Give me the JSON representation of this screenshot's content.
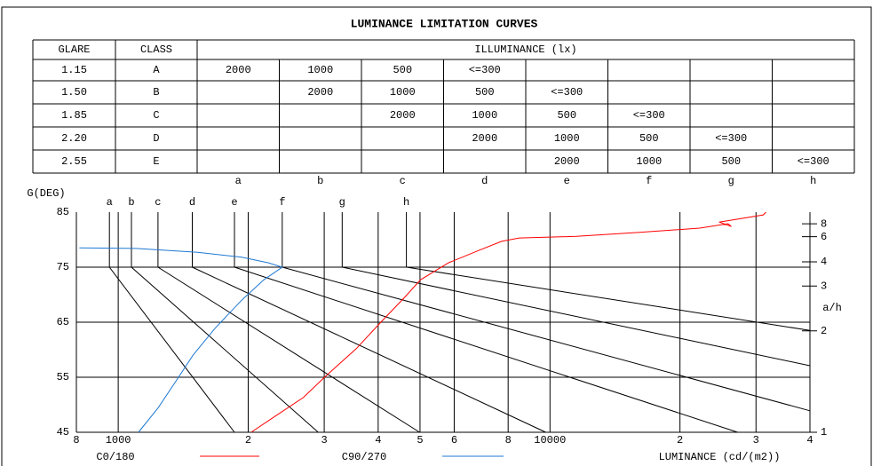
{
  "title": "LUMINANCE LIMITATION CURVES",
  "table": {
    "headers": [
      "GLARE",
      "CLASS",
      "ILLUMINANCE (lx)"
    ],
    "rows": [
      {
        "glare": "1.15",
        "class": "A",
        "cells": [
          "2000",
          "1000",
          "500",
          "<=300",
          null,
          null,
          null,
          null
        ]
      },
      {
        "glare": "1.50",
        "class": "B",
        "cells": [
          null,
          "2000",
          "1000",
          "500",
          "<=300",
          null,
          null,
          null
        ]
      },
      {
        "glare": "1.85",
        "class": "C",
        "cells": [
          null,
          null,
          "2000",
          "1000",
          "500",
          "<=300",
          null,
          null
        ]
      },
      {
        "glare": "2.20",
        "class": "D",
        "cells": [
          null,
          null,
          null,
          "2000",
          "1000",
          "500",
          "<=300",
          null
        ]
      },
      {
        "glare": "2.55",
        "class": "E",
        "cells": [
          null,
          null,
          null,
          null,
          "2000",
          "1000",
          "500",
          "<=300"
        ]
      }
    ],
    "columns": [
      "a",
      "b",
      "c",
      "d",
      "e",
      "f",
      "g",
      "h"
    ]
  },
  "chart_data": {
    "type": "line",
    "y_label": "G(DEG)",
    "x_label": "LUMINANCE (cd/(m2))",
    "y2_label": "a/h",
    "x_log": true,
    "y2_scale": "atan",
    "xlim": [
      800,
      40000
    ],
    "xticks": [
      {
        "value": 800,
        "label": "8"
      },
      {
        "value": 1000,
        "label": "1000"
      },
      {
        "value": 2000,
        "label": "2"
      },
      {
        "value": 3000,
        "label": "3"
      },
      {
        "value": 4000,
        "label": "4"
      },
      {
        "value": 5000,
        "label": "5"
      },
      {
        "value": 6000,
        "label": "6"
      },
      {
        "value": 8000,
        "label": "8"
      },
      {
        "value": 10000,
        "label": "10000"
      },
      {
        "value": 20000,
        "label": "2"
      },
      {
        "value": 30000,
        "label": "3"
      },
      {
        "value": 40000,
        "label": "4"
      }
    ],
    "ylim": [
      45,
      85
    ],
    "yticks": [
      85,
      75,
      65,
      55,
      45
    ],
    "y2lim": [
      1,
      11.43
    ],
    "y2ticks": [
      1,
      2,
      3,
      4,
      6,
      8
    ],
    "series": [
      {
        "name": "a",
        "color": "#000000",
        "x": [
          954,
          954,
          1859
        ],
        "values": [
          85,
          75,
          45
        ]
      },
      {
        "name": "b",
        "color": "#000000",
        "x": [
          1073,
          1073,
          2905
        ],
        "values": [
          85,
          75,
          45
        ]
      },
      {
        "name": "c",
        "color": "#000000",
        "x": [
          1236,
          1236,
          4990
        ],
        "values": [
          85,
          75,
          45
        ]
      },
      {
        "name": "d",
        "color": "#000000",
        "x": [
          1484,
          1484,
          9774
        ],
        "values": [
          85,
          75,
          45
        ]
      },
      {
        "name": "e",
        "color": "#000000",
        "x": [
          1859,
          1859,
          27200
        ],
        "values": [
          85,
          75,
          45
        ]
      },
      {
        "name": "f",
        "color": "#000000",
        "x": [
          2398,
          2398,
          40000
        ],
        "values": [
          85,
          75,
          48.9
        ]
      },
      {
        "name": "g",
        "color": "#000000",
        "x": [
          3301,
          3301,
          40000
        ],
        "values": [
          85,
          75,
          57.1
        ]
      },
      {
        "name": "h",
        "color": "#000000",
        "x": [
          4650,
          4650,
          40000
        ],
        "values": [
          85,
          75,
          63.5
        ]
      },
      {
        "name": "C0/180",
        "color": "#ff0000",
        "x": [
          2032,
          2328,
          2683,
          3004,
          3559,
          4056,
          4603,
          5010,
          5826,
          6866,
          7724,
          8490,
          11510,
          15990,
          22220,
          25830,
          26300,
          24650,
          31190,
          31620
        ],
        "values": [
          45,
          48.1,
          51.3,
          55,
          60.2,
          65,
          69.5,
          72.7,
          75.8,
          78.1,
          79.7,
          80.3,
          80.6,
          81.3,
          82.1,
          82.9,
          82.4,
          83.2,
          84.5,
          85
        ]
      },
      {
        "name": "C90/270",
        "color": "#1e78d2",
        "x": [
          813,
          1099,
          1527,
          1931,
          2224,
          2398,
          2173,
          1931,
          1676,
          1490,
          1358,
          1236,
          1114
        ],
        "values": [
          78.5,
          78.4,
          77.7,
          76.8,
          75.8,
          75,
          72.7,
          69,
          63.9,
          59,
          54.2,
          49.4,
          45
        ]
      }
    ]
  }
}
